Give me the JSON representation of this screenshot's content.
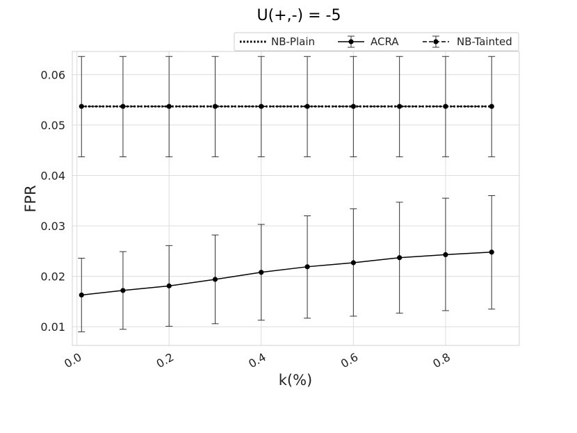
{
  "chart_data": {
    "type": "line",
    "title": "U(+,-) = -5",
    "xlabel": "k(%)",
    "ylabel": "FPR",
    "xlim": [
      -0.01,
      0.96
    ],
    "ylim": [
      0.0063,
      0.0646
    ],
    "xticks": [
      0.0,
      0.2,
      0.4,
      0.6,
      0.8
    ],
    "xtick_labels": [
      "0.0",
      "0.2",
      "0.4",
      "0.6",
      "0.8"
    ],
    "yticks": [
      0.01,
      0.02,
      0.03,
      0.04,
      0.05,
      0.06
    ],
    "ytick_labels": [
      "0.01",
      "0.02",
      "0.03",
      "0.04",
      "0.05",
      "0.06"
    ],
    "grid": true,
    "legend_position": "top-right",
    "x": [
      0.01,
      0.1,
      0.2,
      0.3,
      0.4,
      0.5,
      0.6,
      0.7,
      0.8,
      0.9
    ],
    "series": [
      {
        "name": "NB-Plain",
        "style": "dotted",
        "color": "#000000",
        "values": [
          0.0537,
          0.0537,
          0.0537,
          0.0537,
          0.0537,
          0.0537,
          0.0537,
          0.0537,
          0.0537,
          0.0537
        ]
      },
      {
        "name": "ACRA",
        "style": "solid",
        "color": "#000000",
        "values": [
          0.0163,
          0.0172,
          0.0181,
          0.0194,
          0.0208,
          0.0219,
          0.0227,
          0.0237,
          0.0243,
          0.0248
        ],
        "err_low": [
          0.009,
          0.0095,
          0.0101,
          0.0106,
          0.0113,
          0.0117,
          0.0121,
          0.0127,
          0.0132,
          0.0135
        ],
        "err_high": [
          0.0236,
          0.0249,
          0.0261,
          0.0282,
          0.0303,
          0.032,
          0.0334,
          0.0347,
          0.0355,
          0.036
        ]
      },
      {
        "name": "NB-Tainted",
        "style": "dashed",
        "color": "#000000",
        "values": [
          0.0537,
          0.0537,
          0.0537,
          0.0537,
          0.0537,
          0.0537,
          0.0537,
          0.0537,
          0.0537,
          0.0537
        ],
        "err_low": [
          0.0437,
          0.0437,
          0.0437,
          0.0437,
          0.0437,
          0.0437,
          0.0437,
          0.0437,
          0.0437,
          0.0437
        ],
        "err_high": [
          0.0636,
          0.0636,
          0.0636,
          0.0636,
          0.0636,
          0.0636,
          0.0636,
          0.0636,
          0.0636,
          0.0636
        ]
      }
    ]
  }
}
